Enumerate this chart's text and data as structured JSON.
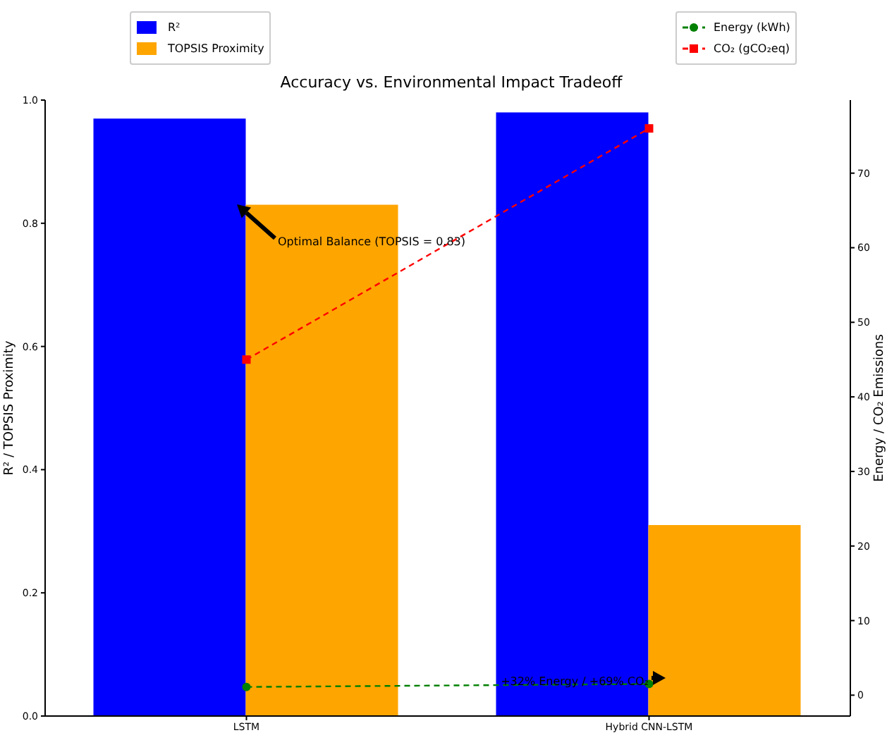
{
  "chart_data": {
    "type": "bar",
    "title": "Accuracy vs. Environmental Impact Tradeoff",
    "ylabel": "R² / TOPSIS Proximity",
    "y2label": "Energy / CO₂ Emissions",
    "categories": [
      "LSTM",
      "Hybrid CNN-LSTM"
    ],
    "series": [
      {
        "name": "R²",
        "color": "#0000ff",
        "values": [
          0.97,
          0.98
        ]
      },
      {
        "name": "TOPSIS Proximity",
        "color": "#ffa500",
        "values": [
          0.83,
          0.31
        ]
      },
      {
        "name": "Energy (kWh)",
        "type": "line",
        "axis": "y2",
        "color": "#008000",
        "marker": "circle",
        "line_style": "dashed",
        "values": [
          1.1,
          1.5
        ]
      },
      {
        "name": "CO₂ (gCO₂eq)",
        "type": "line",
        "axis": "y2",
        "color": "#ff0000",
        "marker": "square",
        "line_style": "dashed",
        "values": [
          45,
          76
        ]
      }
    ],
    "ylim": [
      0,
      1
    ],
    "yticks": [
      {
        "value": 0,
        "label": "0.0"
      },
      {
        "value": 0.2,
        "label": "0.2"
      },
      {
        "value": 0.4,
        "label": "0.4"
      },
      {
        "value": 0.6,
        "label": "0.6"
      },
      {
        "value": 0.8,
        "label": "0.8"
      },
      {
        "value": 1,
        "label": "1.0"
      }
    ],
    "y2lim": [
      -2.8,
      79.8
    ],
    "y2ticks": [
      0,
      10,
      20,
      30,
      40,
      50,
      60,
      70
    ],
    "annotations": [
      "Optimal Balance (TOPSIS = 0.83)",
      "+32% Energy / +69% CO₂"
    ],
    "legend": "top",
    "grid": false
  }
}
